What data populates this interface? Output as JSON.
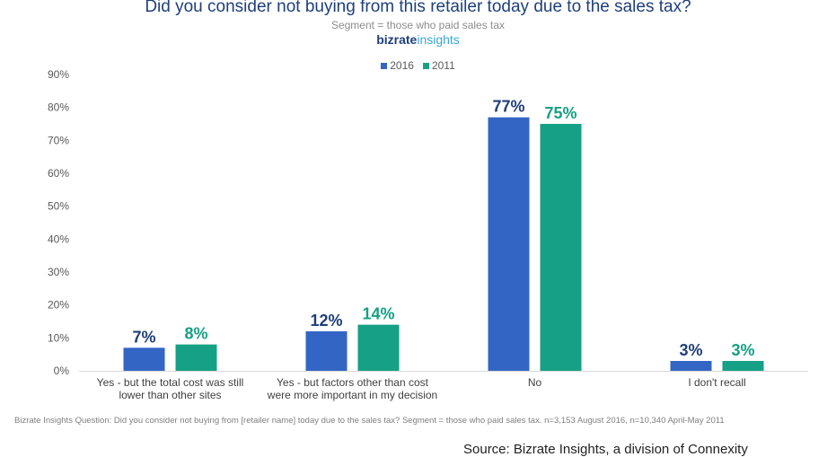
{
  "chart_data": {
    "type": "bar",
    "title": "Did you consider not buying from this retailer today due to the sales tax?",
    "subtitle": "Segment = those who paid sales tax",
    "categories": [
      [
        "Yes - but the total cost was still",
        "lower than other sites"
      ],
      [
        "Yes - but factors other than cost",
        "were more important in my decision"
      ],
      [
        "No"
      ],
      [
        "I don't recall"
      ]
    ],
    "series": [
      {
        "name": "2016",
        "color": "#3366c4",
        "label_color": "#1f3f7a",
        "values": [
          7,
          12,
          77,
          3
        ],
        "labels": [
          "7%",
          "12%",
          "77%",
          "3%"
        ]
      },
      {
        "name": "2011",
        "color": "#16a085",
        "label_color": "#16a085",
        "values": [
          8,
          14,
          75,
          3
        ],
        "labels": [
          "8%",
          "14%",
          "75%",
          "3%"
        ]
      }
    ],
    "ylim": [
      0,
      90
    ],
    "yticks": [
      0,
      10,
      20,
      30,
      40,
      50,
      60,
      70,
      80,
      90
    ],
    "ytick_labels": [
      "0%",
      "10%",
      "20%",
      "30%",
      "40%",
      "50%",
      "60%",
      "70%",
      "80%",
      "90%"
    ],
    "grid": false,
    "legend_position": "top-center"
  },
  "brand": {
    "part1": "bizrate",
    "part2": "insights"
  },
  "footnote": "Bizrate Insights Question: Did you consider not buying from [retailer name] today due to the sales tax? Segment = those who paid sales tax. n=3,153 August 2016, n=10,340 April-May 2011",
  "source": "Source: Bizrate Insights, a division of Connexity"
}
